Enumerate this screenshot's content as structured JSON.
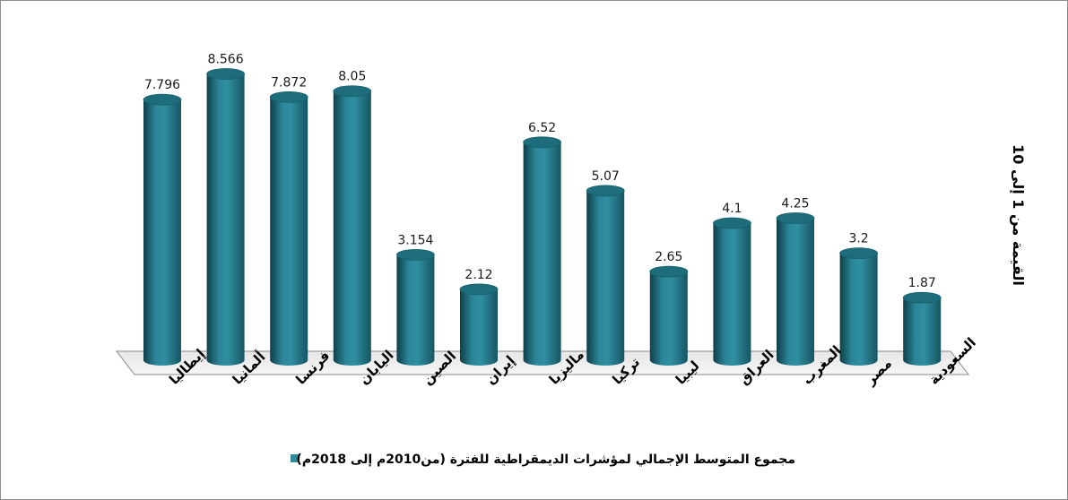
{
  "chart_data": {
    "type": "bar",
    "style": "3d-cylinder",
    "categories": [
      "إيطاليا",
      "ألمانيا",
      "فرنسا",
      "اليابان",
      "الصين",
      "إيران",
      "ماليزيا",
      "تركيا",
      "ليبيا",
      "العراق",
      "المغرب",
      "مصر",
      "السعودية"
    ],
    "series": [
      {
        "name": "مجموع المتوسط الإجمالي لمؤشرات الديمقراطية للفترة (من2010م إلى 2018م)",
        "values": [
          7.796,
          8.566,
          7.872,
          8.05,
          3.154,
          2.12,
          6.52,
          5.07,
          2.65,
          4.1,
          4.25,
          3.2,
          1.87
        ],
        "labels": [
          "7.796",
          "8.566",
          "7.872",
          "8.05",
          "3.154",
          "2.12",
          "6.52",
          "5.07",
          "2.65",
          "4.1",
          "4.25",
          "3.2",
          "1.87"
        ],
        "color": "#2e8c9e"
      }
    ],
    "ylabel": "القيمة من 1 إلى 10",
    "ylim": [
      0,
      10
    ],
    "grid": false,
    "legend_position": "bottom"
  }
}
